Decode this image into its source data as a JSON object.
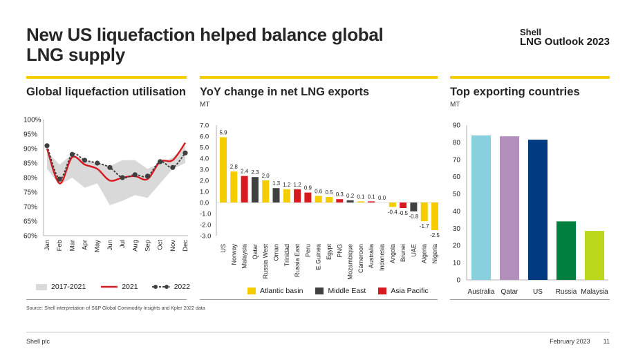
{
  "page": {
    "title": "New US liquefaction helped balance global LNG supply",
    "brand_line1": "Shell",
    "brand_line2": "LNG Outlook 2023",
    "source": "Source: Shell interpretation of S&P Global Commodity Insights and Kpler 2022 data",
    "footer_left": "Shell plc",
    "footer_date": "February 2023",
    "page_number": "11"
  },
  "colors": {
    "shell_yellow": "#f5cc00",
    "series_2021": "#d71920",
    "series_2022": "#404040",
    "range_fill": "#d9d9d9",
    "atlantic": "#f5cc00",
    "middle_east": "#404040",
    "asia_pacific": "#d71920",
    "australia": "#89d0de",
    "qatar": "#b38fbd",
    "us": "#003a80",
    "russia": "#007f3f",
    "malaysia": "#bcd71b"
  },
  "chart_data": [
    {
      "type": "line",
      "title": "Global liquefaction utilisation",
      "categories": [
        "Jan",
        "Feb",
        "Mar",
        "Apr",
        "May",
        "Jun",
        "Jul",
        "Aug",
        "Sep",
        "Oct",
        "Nov",
        "Dec"
      ],
      "y_ticks": [
        "60%",
        "65%",
        "70%",
        "75%",
        "80%",
        "85%",
        "90%",
        "95%",
        "100%"
      ],
      "ylim": [
        60,
        100
      ],
      "range_band": {
        "name": "2017-2021",
        "low": [
          83,
          77.5,
          80,
          76.5,
          78,
          70.5,
          72,
          74,
          73,
          78,
          83,
          85
        ],
        "high": [
          89,
          84.5,
          88,
          86,
          85,
          84,
          86,
          86,
          83,
          85,
          87,
          91
        ]
      },
      "series": [
        {
          "name": "2021",
          "values": [
            90,
            78,
            87,
            84.5,
            83,
            79,
            80,
            80.5,
            79.5,
            85.5,
            86,
            92
          ]
        },
        {
          "name": "2022",
          "values": [
            91,
            79.5,
            88,
            86,
            85,
            83.5,
            80,
            81,
            80.5,
            85.5,
            83.5,
            88.5
          ]
        }
      ],
      "legend": [
        "2017-2021",
        "2021",
        "2022"
      ]
    },
    {
      "type": "bar",
      "title": "YoY change in net LNG exports",
      "unit": "MT",
      "categories": [
        "US",
        "Norway",
        "Malaysia",
        "Qatar",
        "Russia West",
        "Oman",
        "Trinidad",
        "Russia East",
        "Peru",
        "E.Guinea",
        "Egypt",
        "PNG",
        "Mozambique",
        "Cameroon",
        "Australia",
        "Indonesia",
        "Angola",
        "Brunei",
        "UAE",
        "Algeria",
        "Nigeria"
      ],
      "values": [
        5.9,
        2.8,
        2.4,
        2.3,
        2.0,
        1.3,
        1.2,
        1.2,
        0.9,
        0.6,
        0.5,
        0.3,
        0.2,
        0.1,
        0.1,
        0.0,
        -0.4,
        -0.5,
        -0.8,
        -1.7,
        -2.5
      ],
      "value_labels": [
        "5.9",
        "2.8",
        "2.4",
        "2.3",
        "2.0",
        "1.3",
        "1.2",
        "1.2",
        "0.9",
        "0.6",
        "0.5",
        "0.3",
        "0.2",
        "0.1",
        "0.1",
        "0.0",
        "-0.4",
        "-0.5",
        "-0.8",
        "-1.7",
        "-2.5"
      ],
      "regions": [
        "atlantic",
        "atlantic",
        "asia_pacific",
        "middle_east",
        "atlantic",
        "middle_east",
        "atlantic",
        "asia_pacific",
        "asia_pacific",
        "atlantic",
        "atlantic",
        "asia_pacific",
        "middle_east",
        "atlantic",
        "asia_pacific",
        "asia_pacific",
        "atlantic",
        "asia_pacific",
        "middle_east",
        "atlantic",
        "atlantic"
      ],
      "y_ticks": [
        "7.0",
        "6.0",
        "5.0",
        "4.0",
        "3.0",
        "2.0",
        "1.0",
        "0.0",
        "-1.0",
        "-2.0",
        "-3.0"
      ],
      "ylim": [
        -3,
        7
      ],
      "legend": [
        "Atlantic basin",
        "Middle East",
        "Asia Pacific"
      ]
    },
    {
      "type": "bar",
      "title": "Top exporting countries",
      "unit": "MT",
      "categories": [
        "Australia",
        "Qatar",
        "US",
        "Russia",
        "Malaysia"
      ],
      "values": [
        84,
        83.5,
        81.5,
        34,
        28.5
      ],
      "y_ticks": [
        "90",
        "80",
        "70",
        "60",
        "50",
        "40",
        "30",
        "20",
        "10",
        "0"
      ],
      "ylim": [
        0,
        90
      ]
    }
  ]
}
